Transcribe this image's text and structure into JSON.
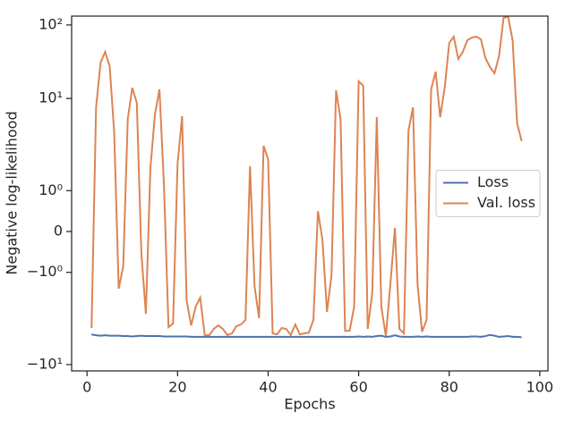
{
  "chart_data": {
    "type": "line",
    "xlabel": "Epochs",
    "ylabel": "Negative log-likelihood",
    "yscale": "symlog",
    "linthresh": 2,
    "xlim": [
      -3.4,
      101.8
    ],
    "ylim": [
      -12.2,
      132
    ],
    "xticks": [
      0,
      20,
      40,
      60,
      80,
      100
    ],
    "yticks": [
      {
        "value": 100,
        "label": "10²"
      },
      {
        "value": 10,
        "label": "10¹"
      },
      {
        "value": 1,
        "label": "10⁰"
      },
      0,
      {
        "value": -1,
        "label": "−10⁰"
      },
      {
        "value": -10,
        "label": "−10¹"
      }
    ],
    "legend": "center right",
    "x": [
      1,
      2,
      3,
      4,
      5,
      6,
      7,
      8,
      9,
      10,
      11,
      12,
      13,
      14,
      15,
      16,
      17,
      18,
      19,
      20,
      21,
      22,
      23,
      24,
      25,
      26,
      27,
      28,
      29,
      30,
      31,
      32,
      33,
      34,
      35,
      36,
      37,
      38,
      39,
      40,
      41,
      42,
      43,
      44,
      45,
      46,
      47,
      48,
      49,
      50,
      51,
      52,
      53,
      54,
      55,
      56,
      57,
      58,
      59,
      60,
      61,
      62,
      63,
      64,
      65,
      66,
      67,
      68,
      69,
      70,
      71,
      72,
      73,
      74,
      75,
      76,
      77,
      78,
      79,
      80,
      81,
      82,
      83,
      84,
      85,
      86,
      87,
      88,
      89,
      90,
      91,
      92,
      93,
      94,
      95,
      96
    ],
    "series": [
      {
        "name": "Loss",
        "color": "#4c72b0",
        "values": [
          -3.9,
          -4.0,
          -4.05,
          -4.0,
          -4.05,
          -4.05,
          -4.05,
          -4.1,
          -4.1,
          -4.15,
          -4.1,
          -4.05,
          -4.1,
          -4.1,
          -4.1,
          -4.1,
          -4.15,
          -4.15,
          -4.15,
          -4.15,
          -4.15,
          -4.15,
          -4.2,
          -4.2,
          -4.2,
          -4.2,
          -4.2,
          -4.2,
          -4.2,
          -4.2,
          -4.2,
          -4.2,
          -4.2,
          -4.2,
          -4.2,
          -4.2,
          -4.2,
          -4.2,
          -4.2,
          -4.2,
          -4.2,
          -4.2,
          -4.2,
          -4.2,
          -4.2,
          -4.2,
          -4.2,
          -4.2,
          -4.2,
          -4.2,
          -4.2,
          -4.2,
          -4.2,
          -4.2,
          -4.2,
          -4.2,
          -4.2,
          -4.2,
          -4.2,
          -4.15,
          -4.2,
          -4.15,
          -4.2,
          -4.1,
          -4.05,
          -4.2,
          -4.15,
          -4.0,
          -4.15,
          -4.2,
          -4.2,
          -4.2,
          -4.15,
          -4.2,
          -4.15,
          -4.2,
          -4.2,
          -4.2,
          -4.2,
          -4.2,
          -4.2,
          -4.2,
          -4.2,
          -4.2,
          -4.15,
          -4.15,
          -4.2,
          -4.1,
          -3.95,
          -4.05,
          -4.2,
          -4.15,
          -4.1,
          -4.2,
          -4.2,
          -4.25
        ]
      },
      {
        "name": "Val. loss",
        "color": "#dd8452",
        "values": [
          -3.18,
          7.59,
          30.8,
          43,
          27.5,
          3.47,
          -1.4,
          -0.85,
          5.27,
          14.0,
          8.73,
          -0.53,
          -2.04,
          1.55,
          6.07,
          13.3,
          1.12,
          -3.1,
          -2.77,
          1.66,
          5.73,
          -1.69,
          -2.93,
          -1.84,
          -1.62,
          -3.98,
          -3.98,
          -3.27,
          -2.93,
          -3.27,
          -3.98,
          -3.77,
          -3.0,
          -2.85,
          -2.48,
          1.6,
          -1.34,
          -2.34,
          2.27,
          1.77,
          -3.77,
          -3.87,
          -3.18,
          -3.27,
          -3.98,
          -2.85,
          -3.87,
          -3.77,
          -3.67,
          -2.48,
          0.5,
          -0.2,
          -1.97,
          -1.07,
          12.9,
          5.27,
          -3.47,
          -3.47,
          -1.84,
          17.1,
          14.9,
          -3.27,
          -1.51,
          5.57,
          -1.84,
          -4.08,
          -1.29,
          0.09,
          -3.27,
          -3.77,
          3.67,
          7.59,
          -1.29,
          -3.57,
          -2.48,
          13.3,
          23.2,
          5.57,
          14.0,
          56.9,
          69.2,
          34.4,
          43,
          61.9,
          67.3,
          69.2,
          63.7,
          35.4,
          26.7,
          22.0,
          37.4,
          124.7,
          130,
          61.9,
          4.58,
          2.62
        ]
      }
    ]
  }
}
